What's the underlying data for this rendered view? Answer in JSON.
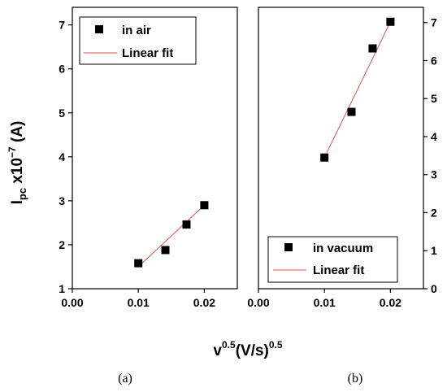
{
  "ylabel": {
    "base": "I",
    "sub": "pc",
    "rest": " x10",
    "sup": "−7",
    "unit": " (A)"
  },
  "xlabel": {
    "base": "v",
    "sup1": "0.5",
    "mid": "(V/s)",
    "sup2": "0.5"
  },
  "colors": {
    "marker": "#000000",
    "fit": "#e8504a",
    "axis": "#000000"
  },
  "chart_data": [
    {
      "type": "scatter",
      "panel_label": "(a)",
      "xlim": [
        0.0,
        0.025
      ],
      "ylim": [
        1,
        7.4
      ],
      "xticks": [
        0.0,
        0.01,
        0.02
      ],
      "xtick_labels": [
        "0.00",
        "0.01",
        "0.02"
      ],
      "yticks": [
        1,
        2,
        3,
        4,
        5,
        6,
        7
      ],
      "ytick_labels": [
        "1",
        "2",
        "3",
        "4",
        "5",
        "6",
        "7"
      ],
      "y_axis_side": "left",
      "legend_position": "top-left",
      "series": [
        {
          "name": "in air",
          "kind": "points",
          "x": [
            0.01,
            0.0141,
            0.0173,
            0.02
          ],
          "y": [
            1.58,
            1.88,
            2.46,
            2.9
          ]
        },
        {
          "name": "Linear fit",
          "kind": "line",
          "x": [
            0.01,
            0.02
          ],
          "y": [
            1.5,
            2.9
          ]
        }
      ]
    },
    {
      "type": "scatter",
      "panel_label": "(b)",
      "xlim": [
        0.0,
        0.025
      ],
      "ylim": [
        0,
        7.4
      ],
      "xticks": [
        0.0,
        0.01,
        0.02
      ],
      "xtick_labels": [
        "0.00",
        "0.01",
        "0.02"
      ],
      "yticks": [
        0,
        1,
        2,
        3,
        4,
        5,
        6,
        7
      ],
      "ytick_labels": [
        "0",
        "1",
        "2",
        "3",
        "4",
        "5",
        "6",
        "7"
      ],
      "y_axis_side": "right",
      "legend_position": "bottom-left",
      "series": [
        {
          "name": "in vacuum",
          "kind": "points",
          "x": [
            0.01,
            0.0141,
            0.0173,
            0.02
          ],
          "y": [
            3.45,
            4.65,
            6.32,
            7.02
          ]
        },
        {
          "name": "Linear fit",
          "kind": "line",
          "x": [
            0.01,
            0.02
          ],
          "y": [
            3.45,
            7.02
          ]
        }
      ]
    }
  ]
}
